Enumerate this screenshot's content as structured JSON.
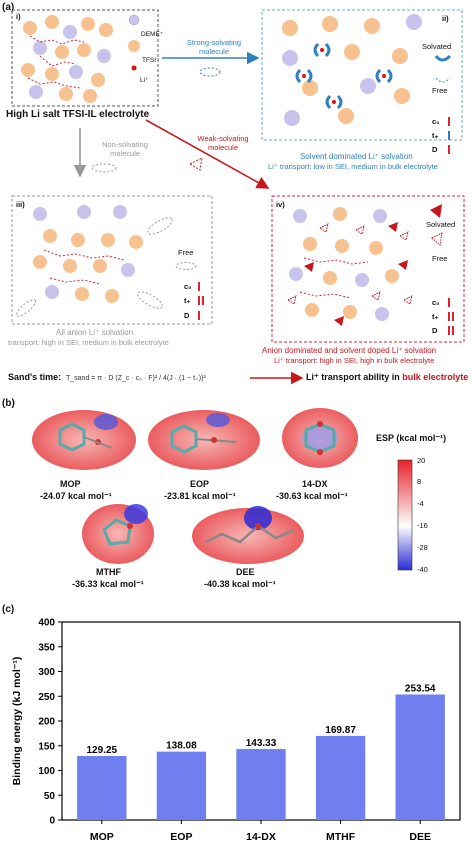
{
  "panel_a": {
    "letter": "(a)",
    "box_i": {
      "label": "i)",
      "legend": [
        "DEME⁺",
        "TFSI⁻",
        "Li⁺"
      ],
      "caption": "High Li salt TFSI-IL electrolyte"
    },
    "arrow_strong": "Strong-solvating molecule",
    "arrow_weak": "Weak-solvating molecule",
    "arrow_non": "Non-solvating molecule",
    "box_ii": {
      "label": "ii)",
      "legend": [
        "Solvated",
        "Free"
      ],
      "params": [
        "c₀",
        "t₊",
        "D"
      ],
      "caption1": "Solvent dominated Li⁺ solvation",
      "caption2": "Li⁺ transport: low in SEI, medium in bulk electrolyte"
    },
    "box_iii": {
      "label": "iii)",
      "legend": [
        "Free"
      ],
      "params": [
        "c₀",
        "t₊",
        "D"
      ],
      "caption1": "All anion Li⁺ solvation",
      "caption2": "transport: high in SEI, medium in bulk electrolyte"
    },
    "box_iv": {
      "label": "iv)",
      "legend": [
        "Solvated",
        "Free"
      ],
      "params": [
        "c₀",
        "t₊",
        "D"
      ],
      "caption1": "Anion dominated and solvent doped  Li⁺ solvation",
      "caption2": "Li⁺ transport: high in SEI, high in bulk electrolyte"
    },
    "sand_label": "Sand's time:",
    "sand_formula": "T_sand = π · D (Z_c · c₀ · F)² / 4(J · (1 − t₊))²",
    "sand_result_1": "Li⁺ transport ability in ",
    "sand_result_2": "bulk electrolyte"
  },
  "panel_b": {
    "letter": "(b)",
    "molecules": [
      {
        "name": "MOP",
        "value": "-24.07 kcal mol⁻¹"
      },
      {
        "name": "EOP",
        "value": "-23.81 kcal mol⁻¹"
      },
      {
        "name": "14-DX",
        "value": "-30.63 kcal mol⁻¹"
      },
      {
        "name": "MTHF",
        "value": "-36.33 kcal mol⁻¹"
      },
      {
        "name": "DEE",
        "value": "-40.38 kcal mol⁻¹"
      }
    ],
    "colorbar_title": "ESP (kcal mol⁻¹)",
    "colorbar_ticks": [
      "20",
      "8",
      "-4",
      "-16",
      "-28",
      "-40"
    ],
    "colors": {
      "high": "#e8202a",
      "mid": "#ffffff",
      "low": "#2b2bd6"
    }
  },
  "chart_data": {
    "type": "bar",
    "letter": "(c)",
    "categories": [
      "MOP",
      "EOP",
      "14-DX",
      "MTHF",
      "DEE"
    ],
    "values": [
      129.25,
      138.08,
      143.33,
      169.87,
      253.54
    ],
    "value_labels": [
      "129.25",
      "138.08",
      "143.33",
      "169.87",
      "253.54"
    ],
    "ylabel": "Binding energy (kJ mol⁻¹)",
    "ylim": [
      0,
      400
    ],
    "yticks": [
      "0",
      "50",
      "100",
      "150",
      "200",
      "250",
      "300",
      "350",
      "400"
    ],
    "bar_color": "#6f7ff0"
  }
}
